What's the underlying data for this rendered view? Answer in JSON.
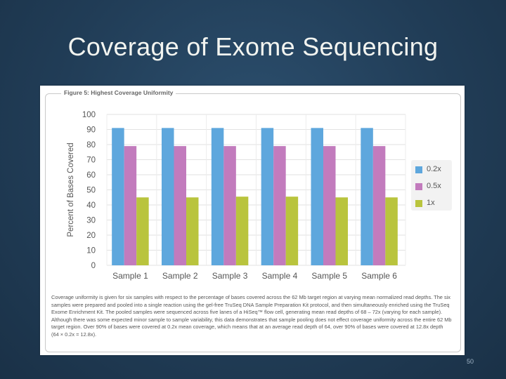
{
  "slide": {
    "title": "Coverage of Exome Sequencing",
    "page_number": "50"
  },
  "figure": {
    "heading": "Figure 5: Highest Coverage Uniformity",
    "caption": "Coverage uniformity is given for six samples with respect to the percentage of bases covered across the 62 Mb target region at varying mean normalized read depths. The six samples were prepared and pooled into a single reaction using the gel-free TruSeq DNA Sample Preparation Kit protocol, and then simultaneously enriched using the TruSeq Exome Enrichment Kit. The pooled samples were sequenced across five lanes of a HiSeq™ flow cell, generating mean read depths of 68 – 72x (varying for each sample). Although there was some expected minor sample to sample variability, this data demonstrates that sample pooling does not effect coverage uniformity across the entire 62 Mb target region. Over 90% of bases were covered at 0.2x mean coverage, which means that at an average read depth of 64, over 90% of bases were covered at 12.8x depth (64 × 0.2x = 12.8x)."
  },
  "colors": {
    "s02": "#5ea7dd",
    "s05": "#c27bbd",
    "s1": "#b9c43d"
  },
  "chart_data": {
    "type": "bar",
    "title": "Figure 5: Highest Coverage Uniformity",
    "xlabel": "",
    "ylabel": "Percent of Bases Covered",
    "ylim": [
      0,
      100
    ],
    "yticks": [
      0,
      10,
      20,
      30,
      40,
      50,
      60,
      70,
      80,
      90,
      100
    ],
    "grid": true,
    "legend_position": "right",
    "categories": [
      "Sample 1",
      "Sample 2",
      "Sample 3",
      "Sample 4",
      "Sample 5",
      "Sample 6"
    ],
    "series": [
      {
        "name": "0.2x",
        "values": [
          91,
          91,
          91,
          91,
          91,
          91
        ]
      },
      {
        "name": "0.5x",
        "values": [
          79,
          79,
          79,
          79,
          79,
          79
        ]
      },
      {
        "name": "1x",
        "values": [
          45,
          45,
          45.5,
          45.5,
          45,
          45
        ]
      }
    ]
  }
}
